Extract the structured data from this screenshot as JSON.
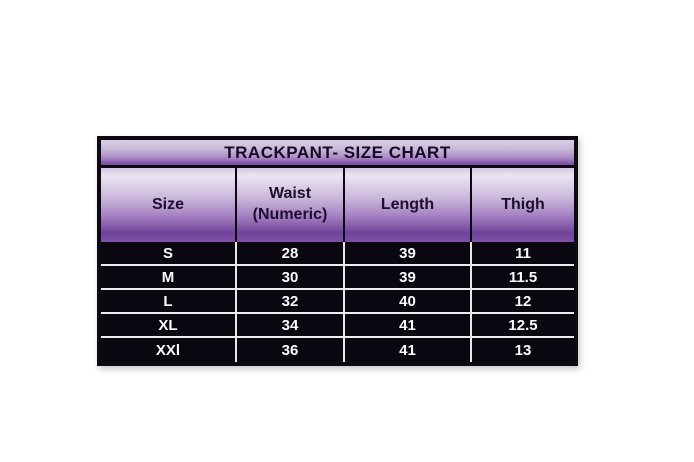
{
  "table": {
    "title": "TRACKPANT- SIZE CHART",
    "headers": [
      {
        "label": "Size",
        "lines": [
          "Size"
        ]
      },
      {
        "label": "Waist (Numeric)",
        "lines": [
          "Waist",
          "(Numeric)"
        ]
      },
      {
        "label": "Length",
        "lines": [
          "Length"
        ]
      },
      {
        "label": "Thigh",
        "lines": [
          "Thigh"
        ]
      }
    ],
    "rows": [
      {
        "size": "S",
        "waist": "28",
        "length": "39",
        "thigh": "11"
      },
      {
        "size": "M",
        "waist": "30",
        "length": "39",
        "thigh": "11.5"
      },
      {
        "size": "L",
        "waist": "32",
        "length": "40",
        "thigh": "12"
      },
      {
        "size": "XL",
        "waist": "34",
        "length": "41",
        "thigh": "12.5"
      },
      {
        "size": "XXl",
        "waist": "36",
        "length": "41",
        "thigh": "13"
      }
    ]
  },
  "chart_data": {
    "type": "table",
    "title": "TRACKPANT- SIZE CHART",
    "columns": [
      "Size",
      "Waist (Numeric)",
      "Length",
      "Thigh"
    ],
    "rows": [
      [
        "S",
        28,
        39,
        11
      ],
      [
        "M",
        30,
        39,
        11.5
      ],
      [
        "L",
        32,
        40,
        12
      ],
      [
        "XL",
        34,
        41,
        12.5
      ],
      [
        "XXl",
        36,
        41,
        13
      ]
    ],
    "layout_hints": {
      "title_band": "purple gradient",
      "header_band": "purple gradient light-to-dark",
      "body": "black rows with white grid lines"
    }
  },
  "colors": {
    "page_background": "#ffffff",
    "border_black": "#0d0913",
    "title_gradient_top": "#d9d0e4",
    "title_gradient_bottom": "#7c4aa2",
    "header_gradient_top": "#ebe5f2",
    "header_gradient_bottom": "#6e4399",
    "accent_strip_purple": "#8051a8",
    "data_row_background": "#0b0710",
    "data_text": "#fafafa",
    "grid_line_white": "#ececec",
    "header_text": "#1c102e"
  }
}
